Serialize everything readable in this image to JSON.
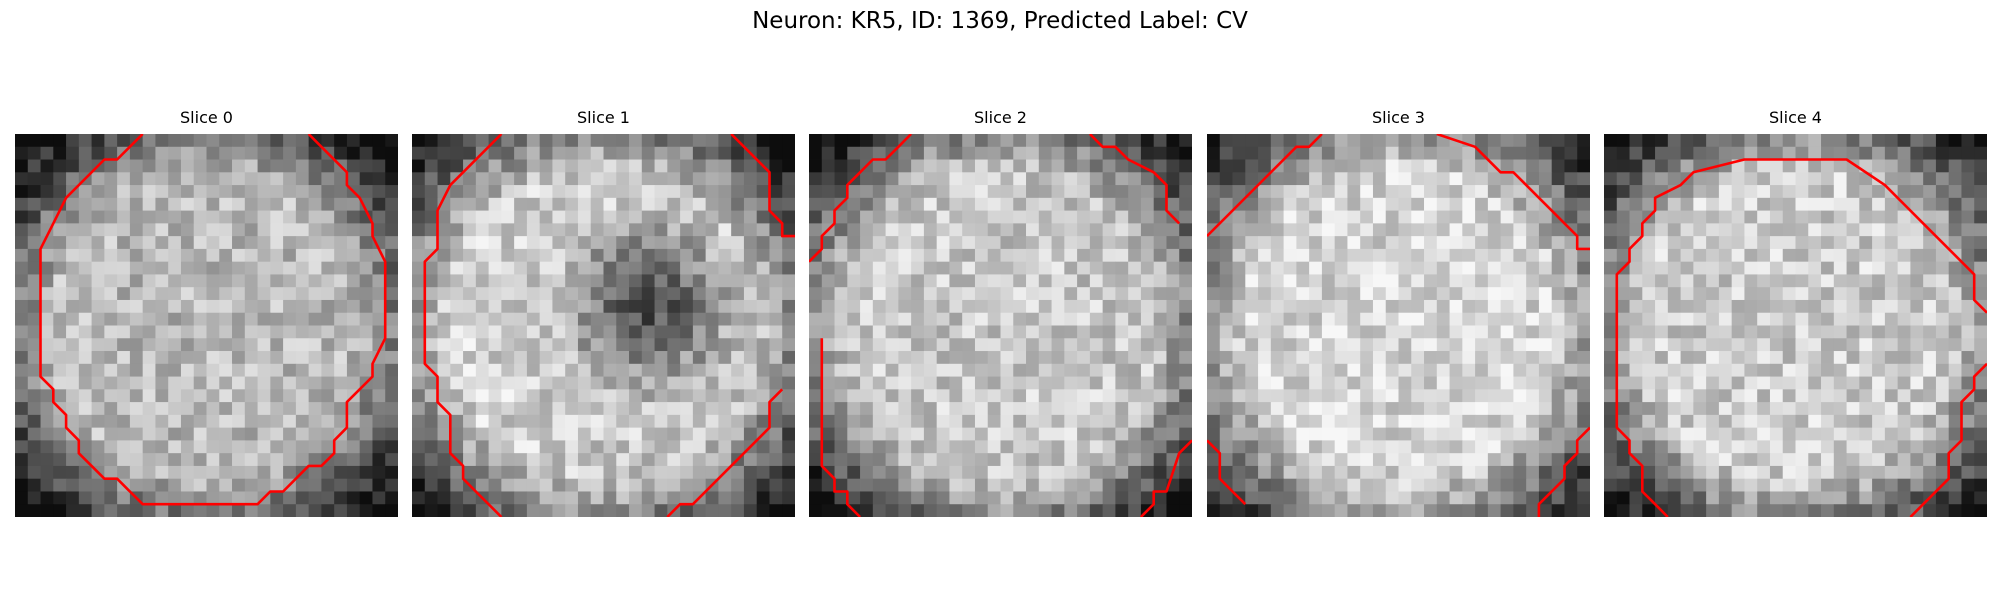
{
  "figure": {
    "title": "Neuron: KR5, ID: 1369, Predicted Label: CV"
  },
  "contour_color": "#ff0000",
  "panels": [
    {
      "title": "Slice 0",
      "description": "grainy grey microscopy patch, bright cell body filling most of the frame, darker edges; red contour forms a near-full closed ring around the cell",
      "contour_segments": 2
    },
    {
      "title": "Slice 1",
      "description": "grainy grey patch, lighter left region with a dark diffuse blob centre-right; red contour arcs along the left side with short pieces at top-right and bottom-right",
      "contour_segments": 3
    },
    {
      "title": "Slice 2",
      "description": "grainy grey patch, bright oval cell with dark corners top-left and bottom; red contour pieces along the left edge and at top-left, top-right and bottom-right corners",
      "contour_segments": 4
    },
    {
      "title": "Slice 3",
      "description": "grainy grey patch, mostly bright with darker bottom band; red contour diagonal lines at top-left and top-right, short pieces at the bottom corners",
      "contour_segments": 4
    },
    {
      "title": "Slice 4",
      "description": "grainy grey patch, bright cell with dark surroundings at left and bottom; red contour forms a large open loop around the cell",
      "contour_segments": 2
    }
  ]
}
